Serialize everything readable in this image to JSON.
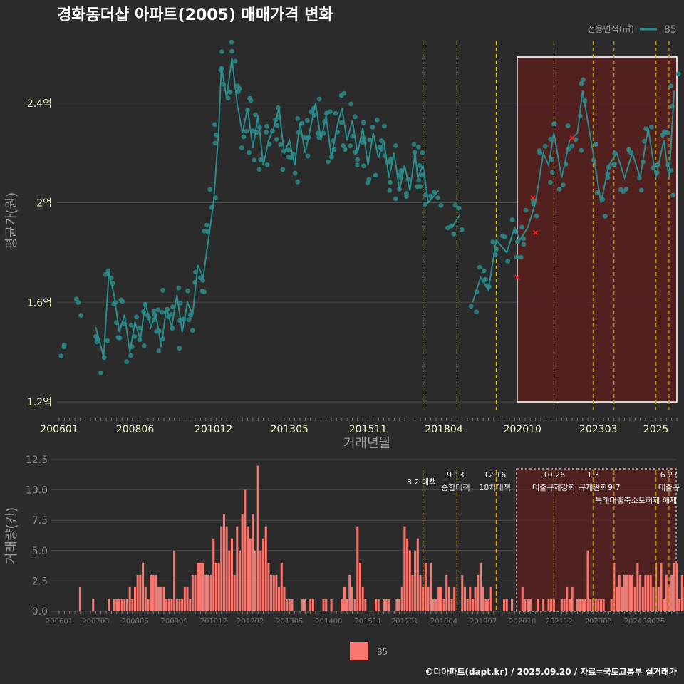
{
  "page": {
    "title": "경화동더샵 아파트(2005) 매매가격 변화",
    "caption": "©디아파트(dapt.kr) / 2025.09.20 / 자료=국토교통부 실거래가"
  },
  "colors": {
    "background": "#2b2b2b",
    "price_series": "#2a8c8c",
    "volume_bars": "#f8766d",
    "highlight_fill": "#5a1f1f",
    "policy_line": "#e6d600",
    "policy_line_bottom": "#e0a800",
    "outlier_marker": "#ff2020",
    "grid": "#4a4a4a"
  },
  "chart_data": [
    {
      "type": "line",
      "name": "price",
      "ylabel": "평균가(원)",
      "xlabel": "거래년월",
      "x_range": [
        "2006-01",
        "2025-09"
      ],
      "ylim": [
        1.16,
        2.7
      ],
      "y_ticks": [
        1.2,
        1.6,
        2.0,
        2.4
      ],
      "y_tick_labels": [
        "1.2억",
        "1.6억",
        "2억",
        "2.4억"
      ],
      "x_ticks": [
        "200601",
        "200806",
        "201012",
        "201305",
        "201511",
        "201804",
        "202010",
        "202303",
        "2025"
      ],
      "legend_title": "전용면적(㎡)",
      "series": [
        {
          "name": "85",
          "line": [
            [
              "2006-03",
              1.42
            ],
            [
              "2006-09",
              1.56
            ],
            [
              "2007-03",
              1.5
            ],
            [
              "2007-06",
              1.38
            ],
            [
              "2007-08",
              1.72
            ],
            [
              "2007-10",
              1.63
            ],
            [
              "2007-12",
              1.48
            ],
            [
              "2008-02",
              1.55
            ],
            [
              "2008-04",
              1.4
            ],
            [
              "2008-06",
              1.52
            ],
            [
              "2008-08",
              1.45
            ],
            [
              "2008-10",
              1.6
            ],
            [
              "2008-12",
              1.5
            ],
            [
              "2009-02",
              1.55
            ],
            [
              "2009-04",
              1.42
            ],
            [
              "2009-06",
              1.58
            ],
            [
              "2009-08",
              1.5
            ],
            [
              "2009-10",
              1.63
            ],
            [
              "2009-12",
              1.48
            ],
            [
              "2010-02",
              1.6
            ],
            [
              "2010-04",
              1.55
            ],
            [
              "2010-06",
              1.75
            ],
            [
              "2010-08",
              1.7
            ],
            [
              "2010-10",
              1.85
            ],
            [
              "2010-12",
              2.0
            ],
            [
              "2011-02",
              2.3
            ],
            [
              "2011-03",
              2.55
            ],
            [
              "2011-05",
              2.42
            ],
            [
              "2011-07",
              2.58
            ],
            [
              "2011-09",
              2.4
            ],
            [
              "2011-11",
              2.28
            ],
            [
              "2012-01",
              2.38
            ],
            [
              "2012-03",
              2.22
            ],
            [
              "2012-05",
              2.35
            ],
            [
              "2012-07",
              2.15
            ],
            [
              "2012-09",
              2.25
            ],
            [
              "2012-11",
              2.3
            ],
            [
              "2013-01",
              2.38
            ],
            [
              "2013-03",
              2.2
            ],
            [
              "2013-05",
              2.25
            ],
            [
              "2013-07",
              2.15
            ],
            [
              "2013-09",
              2.32
            ],
            [
              "2013-11",
              2.2
            ],
            [
              "2014-01",
              2.3
            ],
            [
              "2014-03",
              2.4
            ],
            [
              "2014-05",
              2.25
            ],
            [
              "2014-07",
              2.35
            ],
            [
              "2014-09",
              2.18
            ],
            [
              "2014-11",
              2.3
            ],
            [
              "2015-01",
              2.38
            ],
            [
              "2015-03",
              2.25
            ],
            [
              "2015-05",
              2.33
            ],
            [
              "2015-07",
              2.2
            ],
            [
              "2015-09",
              2.3
            ],
            [
              "2015-11",
              2.15
            ],
            [
              "2016-01",
              2.28
            ],
            [
              "2016-03",
              2.18
            ],
            [
              "2016-05",
              2.25
            ],
            [
              "2016-07",
              2.1
            ],
            [
              "2016-09",
              2.2
            ],
            [
              "2016-11",
              2.05
            ],
            [
              "2017-01",
              2.15
            ],
            [
              "2017-03",
              2.05
            ],
            [
              "2017-05",
              2.2
            ],
            [
              "2017-06",
              2.1
            ],
            [
              "2017-08",
              2.15
            ],
            [
              "2017-10",
              2.0
            ],
            [
              "2018-02",
              2.05
            ],
            [
              "2018-07",
              1.9
            ],
            [
              "2018-10",
              1.95
            ],
            [
              "2019-03",
              1.6
            ],
            [
              "2019-06",
              1.7
            ],
            [
              "2019-09",
              1.65
            ],
            [
              "2019-12",
              1.85
            ],
            [
              "2020-04",
              1.8
            ],
            [
              "2020-07",
              1.9
            ],
            [
              "2020-09",
              1.85
            ],
            [
              "2020-12",
              1.9
            ],
            [
              "2021-03",
              2.0
            ],
            [
              "2021-06",
              2.2
            ],
            [
              "2021-08",
              2.15
            ],
            [
              "2021-10",
              2.28
            ],
            [
              "2022-01",
              2.1
            ],
            [
              "2022-04",
              2.25
            ],
            [
              "2022-07",
              2.28
            ],
            [
              "2022-09",
              2.45
            ],
            [
              "2023-01",
              2.2
            ],
            [
              "2023-04",
              2.0
            ],
            [
              "2023-07",
              2.15
            ],
            [
              "2023-10",
              2.2
            ],
            [
              "2024-01",
              2.1
            ],
            [
              "2024-04",
              2.2
            ],
            [
              "2024-07",
              2.1
            ],
            [
              "2024-10",
              2.3
            ],
            [
              "2025-01",
              2.1
            ],
            [
              "2025-04",
              2.25
            ],
            [
              "2025-06",
              2.1
            ],
            [
              "2025-08",
              2.45
            ]
          ],
          "outliers": [
            [
              "2020-08",
              1.7
            ],
            [
              "2021-02",
              2.02
            ],
            [
              "2021-03",
              1.88
            ],
            [
              "2022-05",
              2.26
            ]
          ]
        }
      ],
      "policy_dates": [
        "2017-08",
        "2018-09",
        "2019-12",
        "2021-10",
        "2023-01",
        "2023-09",
        "2025-01",
        "2025-06"
      ],
      "highlight_range": [
        "2020-08",
        "2025-09"
      ]
    },
    {
      "type": "bar",
      "name": "volume",
      "ylabel": "거래량(건)",
      "ylim": [
        0,
        12.5
      ],
      "y_ticks": [
        0,
        2.5,
        5,
        7.5,
        10,
        12.5
      ],
      "y_tick_labels": [
        "0.0",
        "2.5",
        "5.0",
        "7.5",
        "10.0",
        "12.5"
      ],
      "x_ticks": [
        "200601",
        "200703",
        "200806",
        "200909",
        "201012",
        "201202",
        "201305",
        "201408",
        "201511",
        "201701",
        "201804",
        "201907",
        "202010",
        "202112",
        "202303",
        "202406",
        "2025"
      ],
      "series": [
        {
          "name": "85"
        }
      ],
      "values": [
        0,
        0,
        0,
        0,
        0,
        0,
        0,
        0,
        2,
        0,
        0,
        0,
        0,
        1,
        0,
        0,
        0,
        0,
        0,
        1,
        0,
        1,
        1,
        1,
        1,
        1,
        1,
        2,
        1,
        2,
        3,
        3,
        4,
        2,
        1,
        3,
        3,
        3,
        2,
        2,
        2,
        1,
        1,
        1,
        5,
        1,
        1,
        1,
        2,
        2,
        1,
        3,
        3,
        4,
        4,
        4,
        3,
        3,
        3,
        6,
        4,
        4,
        7,
        8,
        7,
        5,
        6,
        3,
        7,
        5,
        8,
        10,
        7,
        6,
        8,
        5,
        12,
        5,
        6,
        7,
        4,
        3,
        3,
        3,
        2,
        4,
        2,
        1,
        1,
        1,
        0,
        0,
        0,
        1,
        1,
        0,
        1,
        1,
        0,
        0,
        0,
        1,
        1,
        0,
        1,
        0,
        0,
        0,
        1,
        2,
        1,
        3,
        2,
        1,
        7,
        4,
        2,
        1,
        0,
        0,
        0,
        1,
        1,
        0,
        1,
        1,
        1,
        0,
        0,
        1,
        1,
        2,
        7,
        6,
        5,
        3,
        5,
        6,
        3,
        2,
        4,
        2,
        4,
        1,
        1,
        2,
        2,
        1,
        3,
        2,
        1,
        2,
        0,
        0,
        3,
        2,
        1,
        2,
        1,
        2,
        3,
        4,
        2,
        1,
        1,
        2,
        0,
        0,
        0,
        0,
        1,
        1,
        0,
        1,
        0,
        0,
        0,
        2,
        1,
        1,
        1,
        0,
        0,
        1,
        0,
        1,
        0,
        1,
        1,
        1,
        0,
        0,
        1,
        1,
        2,
        1,
        2,
        0,
        1,
        1,
        1,
        1,
        5,
        1,
        1,
        1,
        1,
        1,
        1,
        0,
        0,
        1,
        4,
        2,
        3,
        2,
        3,
        3,
        3,
        3,
        2,
        4,
        3,
        2,
        3,
        3,
        3,
        2,
        4,
        2,
        4,
        1,
        3,
        2,
        3,
        4,
        4,
        1,
        3,
        2,
        2,
        1,
        2,
        2,
        1,
        4,
        2,
        2,
        3,
        2,
        1,
        2,
        2,
        1,
        1,
        2,
        3,
        1,
        2,
        2,
        1,
        3,
        3,
        2,
        2,
        1,
        2,
        1,
        3,
        1,
        1,
        2,
        1,
        1
      ],
      "policy_labels": [
        {
          "date": "2017-08",
          "line1": "8·2 대책",
          "line2": ""
        },
        {
          "date": "2018-09",
          "line1": "9·13",
          "line2": "종합대책"
        },
        {
          "date": "2019-12",
          "line1": "12·16",
          "line2": "18차대책"
        },
        {
          "date": "2021-10",
          "line1": "10·26",
          "line2": "대출규제강화"
        },
        {
          "date": "2023-01",
          "line1": "1·3",
          "line2": "규제완화"
        },
        {
          "date": "2023-09",
          "line1": "",
          "line2": "9·7"
        },
        {
          "date": "2025-06",
          "line1": "6·27",
          "line2": "대출규"
        }
      ],
      "policy_label_extra": "특례대출축소토허제 해제"
    }
  ]
}
